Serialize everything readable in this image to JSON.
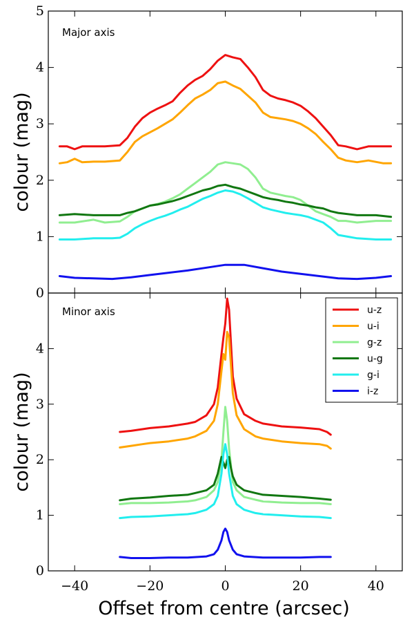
{
  "chart_data": [
    {
      "type": "line",
      "panel_label": "Major axis",
      "ylabel": "colour (mag)",
      "xlabel": "",
      "xlim": [
        -47,
        47
      ],
      "ylim": [
        0,
        5
      ],
      "yticks": [
        0,
        1,
        2,
        3,
        4,
        5
      ],
      "ytick_labels": [
        "0",
        "1",
        "2",
        "3",
        "4",
        "5"
      ],
      "grid": false,
      "series": [
        {
          "name": "u-z",
          "color": "#ee1111",
          "x": [
            -44,
            -42,
            -40,
            -38,
            -35,
            -32,
            -28,
            -26,
            -24,
            -22,
            -20,
            -18,
            -16,
            -14,
            -12,
            -10,
            -8,
            -6,
            -4,
            -2,
            0,
            2,
            4,
            6,
            8,
            10,
            12,
            14,
            16,
            18,
            20,
            22,
            24,
            26,
            28,
            30,
            32,
            35,
            38,
            42,
            44
          ],
          "y": [
            2.6,
            2.6,
            2.55,
            2.6,
            2.6,
            2.6,
            2.62,
            2.75,
            2.95,
            3.1,
            3.2,
            3.27,
            3.33,
            3.4,
            3.55,
            3.68,
            3.78,
            3.85,
            3.97,
            4.12,
            4.22,
            4.18,
            4.15,
            4.0,
            3.83,
            3.6,
            3.5,
            3.45,
            3.42,
            3.38,
            3.32,
            3.22,
            3.1,
            2.95,
            2.8,
            2.62,
            2.6,
            2.55,
            2.6,
            2.6,
            2.6
          ]
        },
        {
          "name": "u-i",
          "color": "#ffa500",
          "x": [
            -44,
            -42,
            -40,
            -38,
            -35,
            -32,
            -28,
            -26,
            -24,
            -22,
            -20,
            -18,
            -16,
            -14,
            -12,
            -10,
            -8,
            -6,
            -4,
            -2,
            0,
            2,
            4,
            6,
            8,
            10,
            12,
            14,
            16,
            18,
            20,
            22,
            24,
            26,
            28,
            30,
            32,
            35,
            38,
            42,
            44
          ],
          "y": [
            2.3,
            2.32,
            2.38,
            2.32,
            2.33,
            2.33,
            2.35,
            2.5,
            2.68,
            2.78,
            2.85,
            2.92,
            3.0,
            3.08,
            3.2,
            3.33,
            3.45,
            3.52,
            3.6,
            3.72,
            3.75,
            3.68,
            3.62,
            3.5,
            3.38,
            3.2,
            3.12,
            3.1,
            3.08,
            3.05,
            3.0,
            2.92,
            2.82,
            2.68,
            2.55,
            2.4,
            2.35,
            2.32,
            2.35,
            2.3,
            2.3
          ]
        },
        {
          "name": "g-z",
          "color": "#90ee90",
          "x": [
            -44,
            -40,
            -35,
            -32,
            -28,
            -26,
            -24,
            -22,
            -20,
            -18,
            -16,
            -14,
            -12,
            -10,
            -8,
            -6,
            -4,
            -2,
            0,
            2,
            4,
            6,
            8,
            10,
            12,
            14,
            16,
            18,
            20,
            22,
            24,
            26,
            28,
            30,
            32,
            35,
            40,
            44
          ],
          "y": [
            1.25,
            1.25,
            1.3,
            1.25,
            1.27,
            1.35,
            1.45,
            1.5,
            1.55,
            1.58,
            1.62,
            1.68,
            1.75,
            1.85,
            1.95,
            2.05,
            2.15,
            2.28,
            2.32,
            2.3,
            2.28,
            2.2,
            2.05,
            1.85,
            1.78,
            1.75,
            1.72,
            1.7,
            1.65,
            1.55,
            1.45,
            1.4,
            1.35,
            1.28,
            1.28,
            1.25,
            1.28,
            1.28
          ]
        },
        {
          "name": "u-g",
          "color": "#117711",
          "x": [
            -44,
            -40,
            -35,
            -30,
            -28,
            -26,
            -24,
            -22,
            -20,
            -18,
            -16,
            -14,
            -12,
            -10,
            -8,
            -6,
            -4,
            -2,
            0,
            2,
            4,
            6,
            8,
            10,
            12,
            14,
            16,
            18,
            20,
            22,
            24,
            26,
            28,
            30,
            35,
            40,
            44
          ],
          "y": [
            1.38,
            1.4,
            1.38,
            1.38,
            1.38,
            1.42,
            1.45,
            1.5,
            1.55,
            1.57,
            1.6,
            1.63,
            1.67,
            1.72,
            1.77,
            1.82,
            1.85,
            1.9,
            1.92,
            1.88,
            1.85,
            1.8,
            1.75,
            1.7,
            1.67,
            1.65,
            1.62,
            1.6,
            1.57,
            1.55,
            1.52,
            1.5,
            1.45,
            1.42,
            1.38,
            1.38,
            1.35
          ]
        },
        {
          "name": "g-i",
          "color": "#22eeee",
          "x": [
            -44,
            -40,
            -35,
            -30,
            -28,
            -26,
            -24,
            -22,
            -20,
            -18,
            -16,
            -14,
            -12,
            -10,
            -8,
            -6,
            -4,
            -2,
            0,
            2,
            4,
            6,
            8,
            10,
            12,
            14,
            16,
            18,
            20,
            22,
            24,
            26,
            28,
            30,
            35,
            40,
            44
          ],
          "y": [
            0.95,
            0.95,
            0.97,
            0.97,
            0.98,
            1.05,
            1.15,
            1.22,
            1.28,
            1.33,
            1.37,
            1.42,
            1.48,
            1.53,
            1.6,
            1.67,
            1.72,
            1.78,
            1.82,
            1.8,
            1.75,
            1.68,
            1.6,
            1.52,
            1.48,
            1.45,
            1.42,
            1.4,
            1.38,
            1.35,
            1.3,
            1.25,
            1.15,
            1.03,
            0.97,
            0.95,
            0.95
          ]
        },
        {
          "name": "i-z",
          "color": "#1111ee",
          "x": [
            -44,
            -40,
            -35,
            -30,
            -25,
            -20,
            -15,
            -10,
            -5,
            0,
            5,
            10,
            15,
            20,
            25,
            30,
            35,
            40,
            44
          ],
          "y": [
            0.3,
            0.27,
            0.26,
            0.25,
            0.28,
            0.32,
            0.36,
            0.4,
            0.45,
            0.5,
            0.5,
            0.44,
            0.38,
            0.34,
            0.3,
            0.26,
            0.25,
            0.27,
            0.3
          ]
        }
      ]
    },
    {
      "type": "line",
      "panel_label": "Minor axis",
      "ylabel": "colour (mag)",
      "xlabel": "Offset from centre (arcsec)",
      "xlim": [
        -47,
        47
      ],
      "ylim": [
        0,
        5
      ],
      "xticks": [
        -40,
        -20,
        0,
        20,
        40
      ],
      "xtick_labels": [
        "−40",
        "−20",
        "0",
        "20",
        "40"
      ],
      "yticks": [
        0,
        1,
        2,
        3,
        4
      ],
      "ytick_labels": [
        "0",
        "1",
        "2",
        "3",
        "4"
      ],
      "grid": false,
      "legend": "top-right",
      "series": [
        {
          "name": "u-z",
          "color": "#ee1111",
          "x": [
            -28,
            -25,
            -22,
            -20,
            -15,
            -10,
            -8,
            -5,
            -3,
            -2,
            -1,
            -0.5,
            0,
            0.5,
            1,
            2,
            3,
            5,
            8,
            10,
            15,
            20,
            25,
            27,
            28
          ],
          "y": [
            2.5,
            2.52,
            2.55,
            2.57,
            2.6,
            2.65,
            2.68,
            2.8,
            3.0,
            3.3,
            3.9,
            4.2,
            4.45,
            4.9,
            4.7,
            3.5,
            3.1,
            2.82,
            2.7,
            2.65,
            2.6,
            2.58,
            2.55,
            2.5,
            2.45
          ]
        },
        {
          "name": "u-i",
          "color": "#ffa500",
          "x": [
            -28,
            -25,
            -22,
            -20,
            -15,
            -10,
            -8,
            -5,
            -3,
            -2,
            -1,
            -0.5,
            0,
            0.5,
            1,
            2,
            3,
            5,
            8,
            10,
            15,
            20,
            25,
            27,
            28
          ],
          "y": [
            2.22,
            2.25,
            2.28,
            2.3,
            2.33,
            2.38,
            2.42,
            2.52,
            2.7,
            3.0,
            3.6,
            3.9,
            3.8,
            4.3,
            4.2,
            3.2,
            2.8,
            2.55,
            2.42,
            2.38,
            2.33,
            2.3,
            2.28,
            2.25,
            2.2
          ]
        },
        {
          "name": "g-z",
          "color": "#90ee90",
          "x": [
            -28,
            -25,
            -20,
            -15,
            -10,
            -8,
            -5,
            -3,
            -2,
            -1,
            -0.5,
            0,
            0.5,
            1,
            2,
            3,
            5,
            8,
            10,
            15,
            20,
            25,
            28
          ],
          "y": [
            1.2,
            1.22,
            1.22,
            1.23,
            1.25,
            1.27,
            1.33,
            1.45,
            1.6,
            2.0,
            2.5,
            2.95,
            2.7,
            2.2,
            1.6,
            1.45,
            1.33,
            1.28,
            1.25,
            1.23,
            1.22,
            1.22,
            1.2
          ]
        },
        {
          "name": "u-g",
          "color": "#117711",
          "x": [
            -28,
            -25,
            -20,
            -15,
            -10,
            -8,
            -5,
            -3,
            -2,
            -1,
            0,
            0.5,
            1,
            1.5,
            2,
            3,
            5,
            8,
            10,
            15,
            20,
            25,
            28
          ],
          "y": [
            1.27,
            1.3,
            1.32,
            1.35,
            1.37,
            1.4,
            1.45,
            1.55,
            1.75,
            2.05,
            1.85,
            2.0,
            2.05,
            1.85,
            1.7,
            1.55,
            1.45,
            1.4,
            1.37,
            1.35,
            1.33,
            1.3,
            1.28
          ]
        },
        {
          "name": "g-i",
          "color": "#22eeee",
          "x": [
            -28,
            -25,
            -20,
            -15,
            -10,
            -8,
            -5,
            -3,
            -2,
            -1,
            -0.5,
            0,
            0.5,
            1,
            2,
            3,
            5,
            8,
            10,
            15,
            20,
            25,
            28
          ],
          "y": [
            0.95,
            0.97,
            0.98,
            1.0,
            1.02,
            1.04,
            1.1,
            1.2,
            1.35,
            1.75,
            2.1,
            2.28,
            2.1,
            1.75,
            1.35,
            1.2,
            1.1,
            1.04,
            1.02,
            1.0,
            0.98,
            0.97,
            0.95
          ]
        },
        {
          "name": "i-z",
          "color": "#1111ee",
          "x": [
            -28,
            -25,
            -20,
            -15,
            -10,
            -5,
            -3,
            -2,
            -1,
            -0.5,
            0,
            0.5,
            1,
            2,
            3,
            5,
            10,
            15,
            20,
            25,
            28
          ],
          "y": [
            0.25,
            0.23,
            0.23,
            0.24,
            0.24,
            0.26,
            0.3,
            0.38,
            0.55,
            0.7,
            0.76,
            0.7,
            0.55,
            0.38,
            0.3,
            0.26,
            0.24,
            0.24,
            0.24,
            0.25,
            0.25
          ]
        }
      ]
    }
  ]
}
